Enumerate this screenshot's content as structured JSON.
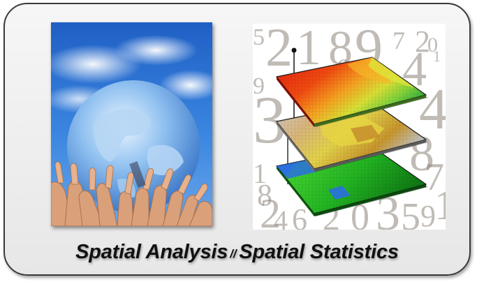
{
  "caption": {
    "left": "Spatial Analysis",
    "separator": "//",
    "right": "Spatial Statistics"
  },
  "background_digits": [
    "5",
    "2",
    "1",
    "8",
    "9",
    "7",
    "2",
    "0",
    "1",
    "4",
    "9",
    "3",
    "1",
    "4",
    "8",
    "7",
    "2",
    "8",
    "1",
    "4",
    "6",
    "2",
    "0",
    "3",
    "5",
    "9",
    "0"
  ],
  "colors": {
    "border": "#3a3a3a",
    "card_background": "#eeeeee",
    "caption_text": "#111111"
  },
  "illustrations": {
    "left": "globe-held-by-hands",
    "right": "stacked-map-layers"
  }
}
